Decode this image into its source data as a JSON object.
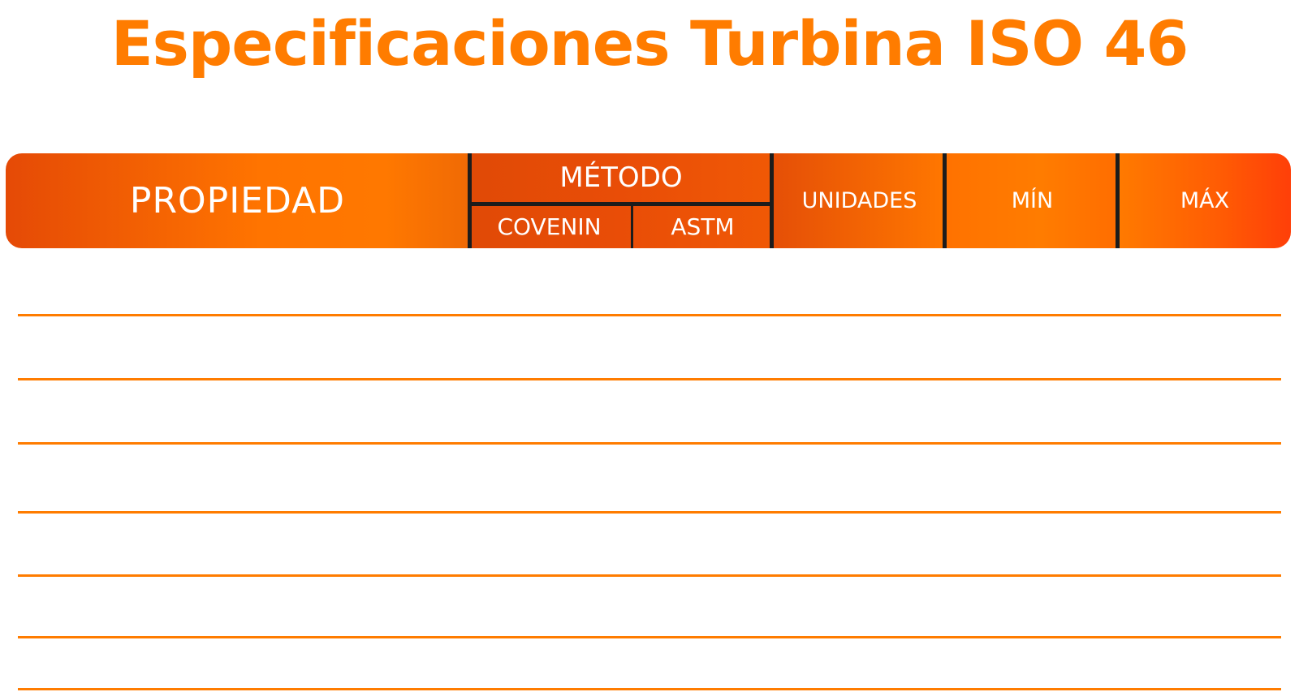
{
  "title": "Especificaciones Turbina ISO 46",
  "table": {
    "headers": {
      "propiedad": "PROPIEDAD",
      "metodo": "MÉTODO",
      "covenin": "COVENIN",
      "astm": "ASTM",
      "unidades": "UNIDADES",
      "min": "MÍN",
      "max": "MÁX"
    },
    "rows": []
  },
  "colors": {
    "accent": "#ff7c00",
    "header_dark": "#e04a06",
    "divider": "#1c1c1c",
    "text_on_header": "#ffffff"
  }
}
